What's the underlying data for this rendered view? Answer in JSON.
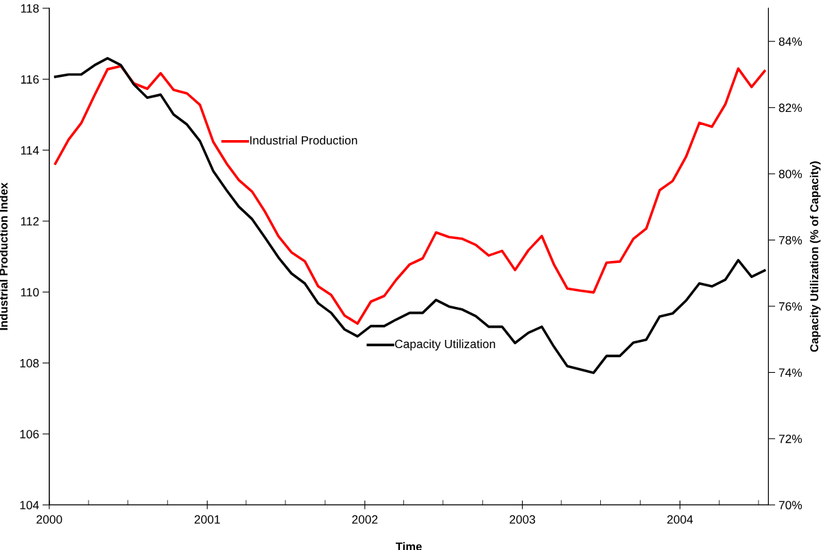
{
  "chart_data": {
    "type": "line",
    "xlabel": "Time",
    "ylabel": "Industrial Production Index",
    "y2label": "Capacity Utilization (% of Capacity)",
    "x": [
      "2000-01-15",
      "2000-02-15",
      "2000-03-15",
      "2000-04-15",
      "2000-05-15",
      "2000-06-15",
      "2000-07-15",
      "2000-08-15",
      "2000-09-15",
      "2000-10-15",
      "2000-11-15",
      "2000-12-15",
      "2001-01-15",
      "2001-02-15",
      "2001-03-15",
      "2001-04-15",
      "2001-05-15",
      "2001-06-15",
      "2001-07-15",
      "2001-08-15",
      "2001-09-15",
      "2001-10-15",
      "2001-11-15",
      "2001-12-15",
      "2002-01-15",
      "2002-02-15",
      "2002-03-15",
      "2002-04-15",
      "2002-05-15",
      "2002-06-15",
      "2002-07-15",
      "2002-08-15",
      "2002-09-15",
      "2002-10-15",
      "2002-11-15",
      "2002-12-15",
      "2003-01-15",
      "2003-02-15",
      "2003-03-15",
      "2003-04-15",
      "2003-05-15",
      "2003-06-15",
      "2003-07-15",
      "2003-08-15",
      "2003-09-15",
      "2003-10-15",
      "2003-11-15",
      "2003-12-15",
      "2004-01-15",
      "2004-02-15",
      "2004-03-15",
      "2004-04-15",
      "2004-05-15",
      "2004-06-15",
      "2004-07-15"
    ],
    "series": [
      {
        "name": "Industrial Production",
        "color": "#ff0000",
        "axis": "y",
        "values": [
          113.62,
          114.3,
          114.76,
          115.55,
          116.28,
          116.37,
          115.88,
          115.73,
          116.17,
          115.7,
          115.6,
          115.28,
          114.23,
          113.62,
          113.16,
          112.83,
          112.26,
          111.57,
          111.12,
          110.87,
          110.16,
          109.92,
          109.34,
          109.11,
          109.73,
          109.89,
          110.35,
          110.78,
          110.95,
          111.68,
          111.55,
          111.5,
          111.33,
          111.03,
          111.16,
          110.62,
          111.18,
          111.58,
          110.78,
          110.1,
          110.04,
          109.99,
          110.83,
          110.86,
          111.5,
          111.79,
          112.87,
          113.13,
          113.81,
          114.77,
          114.66,
          115.29,
          116.3,
          115.78,
          116.23
        ]
      },
      {
        "name": "Capacity Utilization",
        "color": "#000000",
        "axis": "y2",
        "values": [
          82.93,
          83.0,
          83.0,
          83.28,
          83.49,
          83.28,
          82.7,
          82.3,
          82.39,
          81.79,
          81.49,
          80.99,
          80.08,
          79.5,
          79.01,
          78.63,
          78.07,
          77.47,
          76.99,
          76.69,
          76.09,
          75.8,
          75.3,
          75.09,
          75.4,
          75.4,
          75.6,
          75.8,
          75.8,
          76.19,
          75.99,
          75.9,
          75.7,
          75.38,
          75.38,
          74.89,
          75.2,
          75.38,
          74.78,
          74.19,
          74.09,
          73.99,
          74.5,
          74.5,
          74.9,
          74.99,
          75.69,
          75.78,
          76.17,
          76.69,
          76.6,
          76.8,
          77.39,
          76.89,
          77.08
        ]
      }
    ],
    "xlim": [
      "2000-01-01",
      "2004-07-24"
    ],
    "xticks": [
      {
        "value": "2000-01-01",
        "label": "2000"
      },
      {
        "value": "2000-04-01",
        "label": null
      },
      {
        "value": "2000-07-01",
        "label": null
      },
      {
        "value": "2000-10-01",
        "label": null
      },
      {
        "value": "2001-01-01",
        "label": "2001"
      },
      {
        "value": "2001-04-01",
        "label": null
      },
      {
        "value": "2001-07-01",
        "label": null
      },
      {
        "value": "2001-10-01",
        "label": null
      },
      {
        "value": "2002-01-01",
        "label": "2002"
      },
      {
        "value": "2002-04-01",
        "label": null
      },
      {
        "value": "2002-07-01",
        "label": null
      },
      {
        "value": "2002-10-01",
        "label": null
      },
      {
        "value": "2003-01-01",
        "label": "2003"
      },
      {
        "value": "2003-04-01",
        "label": null
      },
      {
        "value": "2003-07-01",
        "label": null
      },
      {
        "value": "2003-10-01",
        "label": null
      },
      {
        "value": "2004-01-01",
        "label": "2004"
      },
      {
        "value": "2004-04-01",
        "label": null
      },
      {
        "value": "2004-07-01",
        "label": null
      }
    ],
    "ylim": [
      104,
      118
    ],
    "yticks": [
      104,
      106,
      108,
      110,
      112,
      114,
      116,
      118
    ],
    "y2lim": [
      70,
      85
    ],
    "y2ticks": [
      {
        "value": 70,
        "label": "70%"
      },
      {
        "value": 72,
        "label": "72%"
      },
      {
        "value": 74,
        "label": "74%"
      },
      {
        "value": 76,
        "label": "76%"
      },
      {
        "value": 78,
        "label": "78%"
      },
      {
        "value": 80,
        "label": "80%"
      },
      {
        "value": 82,
        "label": "82%"
      },
      {
        "value": 84,
        "label": "84%"
      }
    ],
    "grid": false,
    "legend": "left",
    "marker": "none",
    "line_style": "solid"
  }
}
